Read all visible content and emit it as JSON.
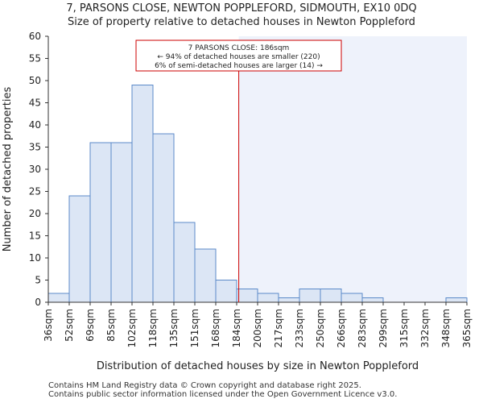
{
  "chart_data": {
    "type": "histogram",
    "title": "7, PARSONS CLOSE, NEWTON POPPLEFORD, SIDMOUTH, EX10 0DQ",
    "subtitle": "Size of property relative to detached houses in Newton Poppleford",
    "xlabel": "Distribution of detached houses by size in Newton Poppleford",
    "ylabel": "Number of detached properties",
    "ylim": [
      0,
      60
    ],
    "yticks": [
      0,
      5,
      10,
      15,
      20,
      25,
      30,
      35,
      40,
      45,
      50,
      55,
      60
    ],
    "categories": [
      "36sqm",
      "52sqm",
      "69sqm",
      "85sqm",
      "102sqm",
      "118sqm",
      "135sqm",
      "151sqm",
      "168sqm",
      "184sqm",
      "200sqm",
      "217sqm",
      "233sqm",
      "250sqm",
      "266sqm",
      "283sqm",
      "299sqm",
      "315sqm",
      "332sqm",
      "348sqm",
      "365sqm"
    ],
    "values": [
      2,
      24,
      36,
      36,
      49,
      38,
      18,
      12,
      5,
      3,
      2,
      1,
      3,
      3,
      2,
      1,
      0,
      0,
      0,
      1
    ],
    "marker_bin_position": 9.1,
    "highlight_from_bin": 9.1,
    "bar_fill": "#dce6f5",
    "bar_edge": "#5b8ac9",
    "highlight_fill": "#eef2fb",
    "marker_color": "#cc0000",
    "annotation": {
      "line1": "7 PARSONS CLOSE: 186sqm",
      "line2": "← 94% of detached houses are smaller (220)",
      "line3": "6% of semi-detached houses are larger (14) →"
    }
  },
  "footer": {
    "line1": "Contains HM Land Registry data © Crown copyright and database right 2025.",
    "line2": "Contains public sector information licensed under the Open Government Licence v3.0."
  }
}
